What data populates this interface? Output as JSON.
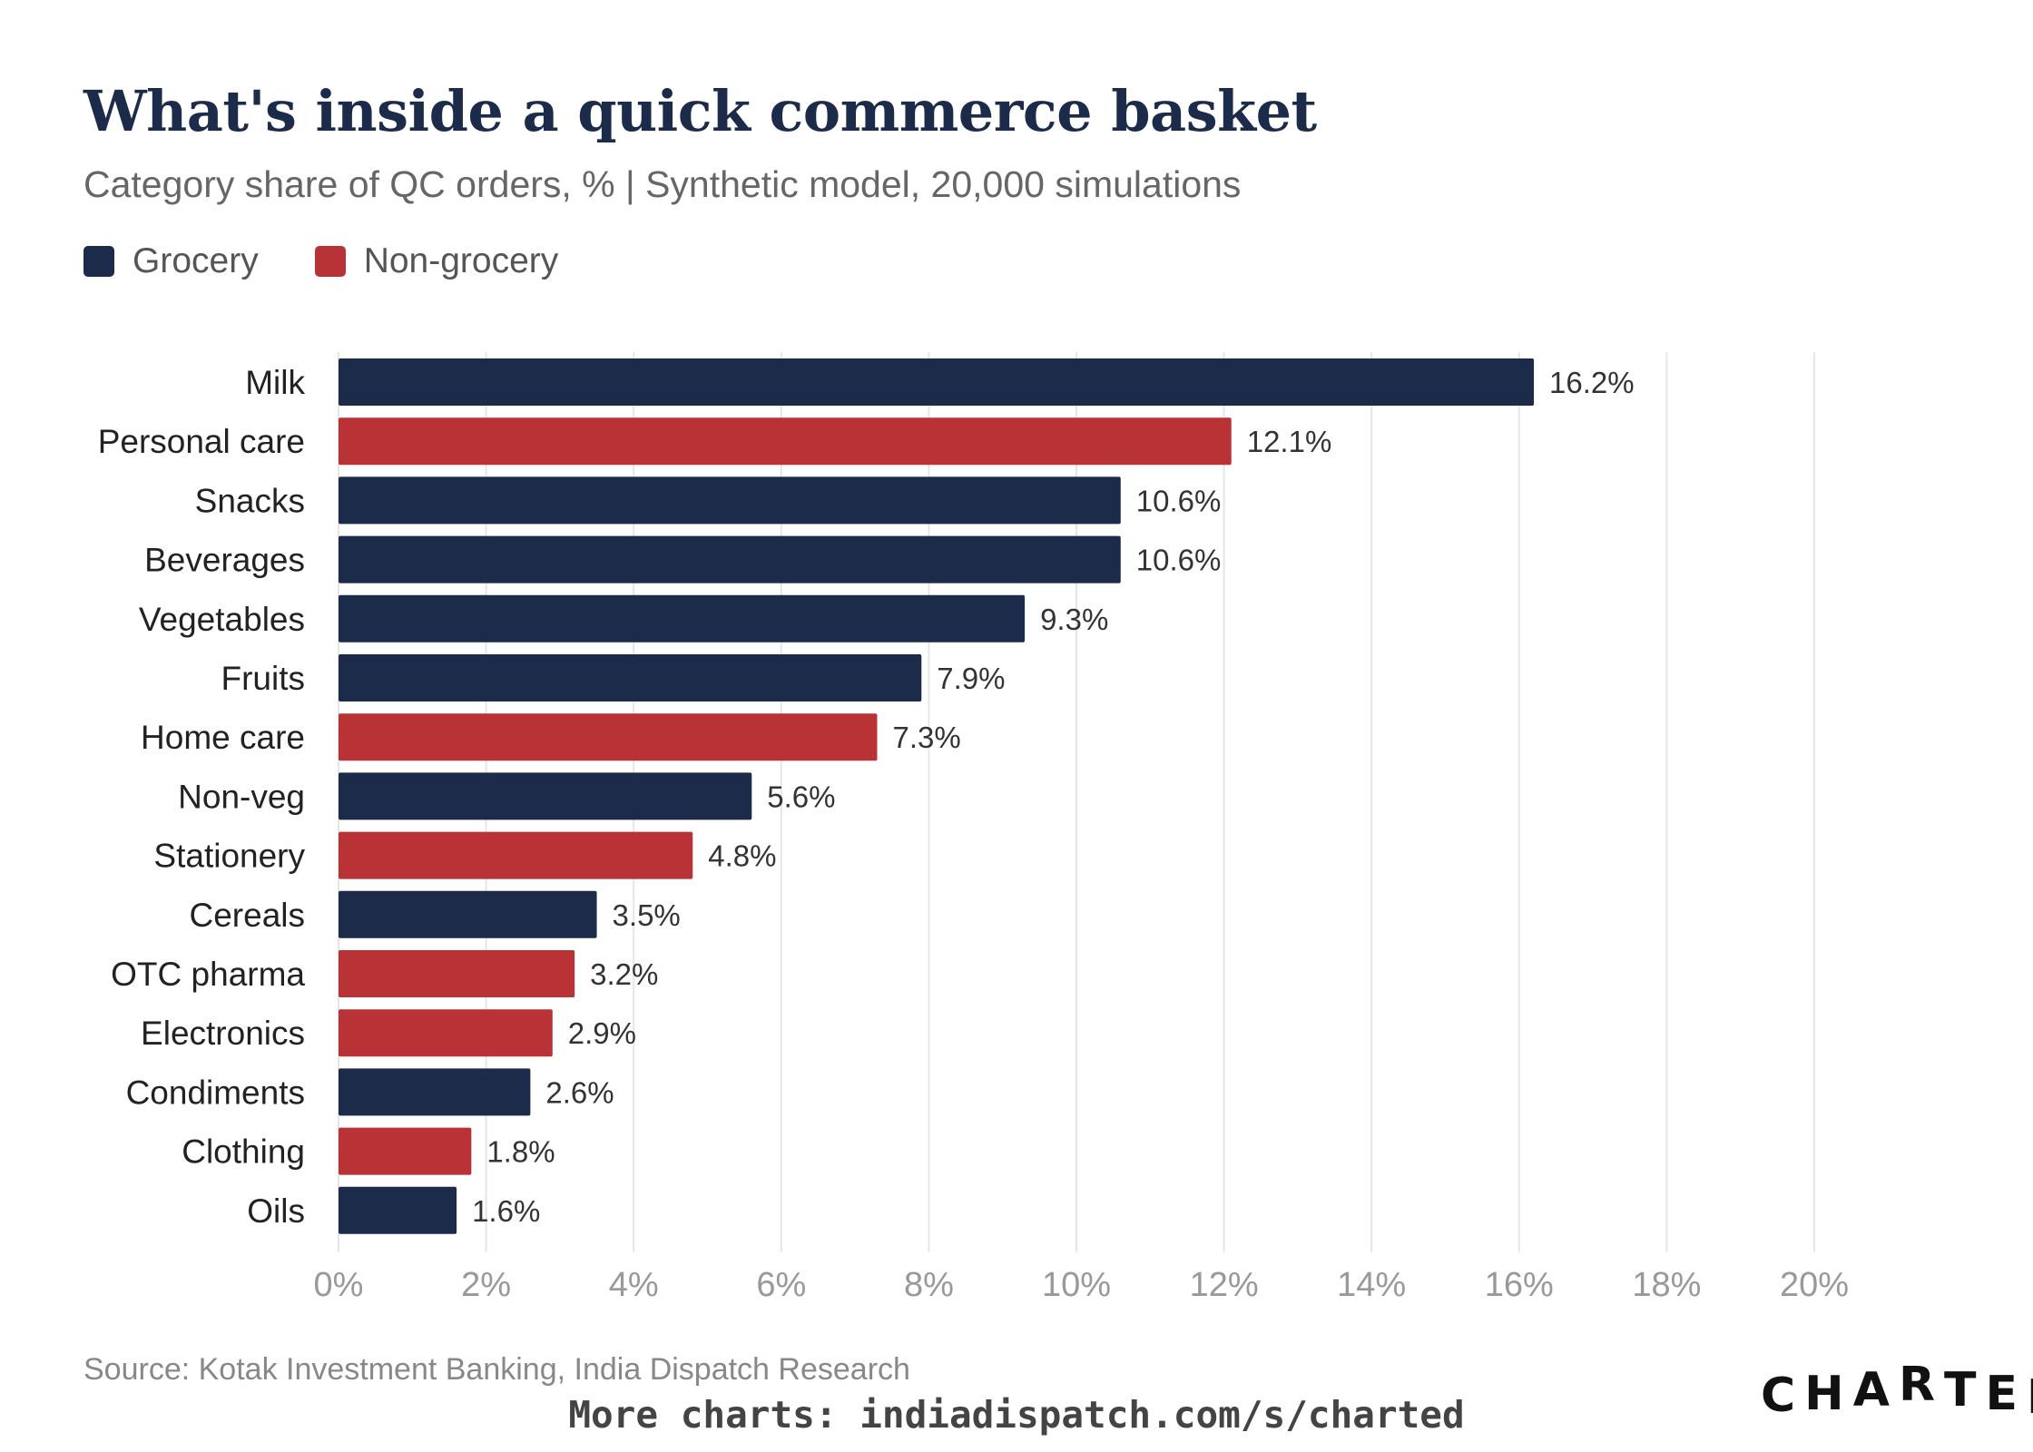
{
  "chart_data": {
    "type": "bar",
    "orientation": "horizontal",
    "title": "What's inside a quick commerce basket",
    "subtitle": "Category share of QC orders, % | Synthetic model, 20,000 simulations",
    "legend": {
      "placement": "top-left",
      "entries": [
        {
          "name": "Grocery",
          "color": "#1c2b4a"
        },
        {
          "name": "Non-grocery",
          "color": "#b83236"
        }
      ]
    },
    "categories": [
      "Milk",
      "Personal care",
      "Snacks",
      "Beverages",
      "Vegetables",
      "Fruits",
      "Home care",
      "Non-veg",
      "Stationery",
      "Cereals",
      "OTC pharma",
      "Electronics",
      "Condiments",
      "Clothing",
      "Oils"
    ],
    "values": [
      16.2,
      12.1,
      10.6,
      10.6,
      9.3,
      7.9,
      7.3,
      5.6,
      4.8,
      3.5,
      3.2,
      2.9,
      2.6,
      1.8,
      1.6
    ],
    "groups": [
      "Grocery",
      "Non-grocery",
      "Grocery",
      "Grocery",
      "Grocery",
      "Grocery",
      "Non-grocery",
      "Grocery",
      "Non-grocery",
      "Grocery",
      "Non-grocery",
      "Non-grocery",
      "Grocery",
      "Non-grocery",
      "Grocery"
    ],
    "data_labels": [
      "16.2%",
      "12.1%",
      "10.6%",
      "10.6%",
      "9.3%",
      "7.9%",
      "7.3%",
      "5.6%",
      "4.8%",
      "3.5%",
      "3.2%",
      "2.9%",
      "2.6%",
      "1.8%",
      "1.6%"
    ],
    "xlim": [
      0,
      20
    ],
    "xticks": [
      0,
      2,
      4,
      6,
      8,
      10,
      12,
      14,
      16,
      18,
      20
    ],
    "xtick_labels": [
      "0%",
      "2%",
      "4%",
      "6%",
      "8%",
      "10%",
      "12%",
      "14%",
      "16%",
      "18%",
      "20%"
    ],
    "grid": "vertical"
  },
  "footer": {
    "source": "Source: Kotak Investment Banking, India Dispatch Research",
    "more_charts": "More charts: indiadispatch.com/s/charted",
    "logo": "CHARTED"
  }
}
